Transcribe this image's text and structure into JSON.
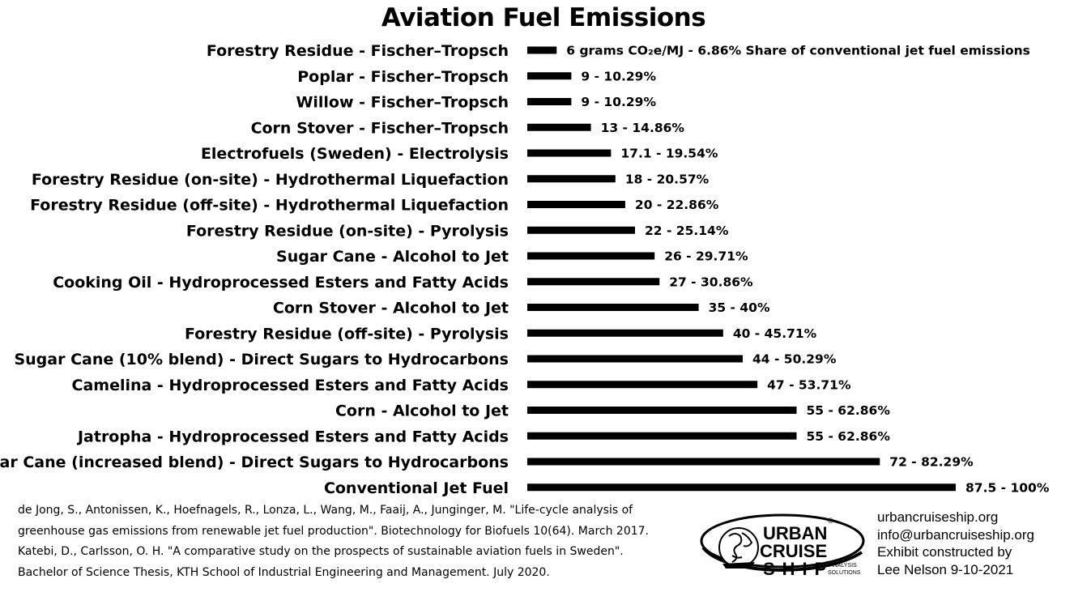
{
  "chart_data": {
    "type": "bar",
    "orientation": "horizontal",
    "title": "Aviation Fuel Emissions",
    "categories": [
      "Forestry Residue - Fischer–Tropsch",
      "Poplar - Fischer–Tropsch",
      "Willow - Fischer–Tropsch",
      "Corn Stover - Fischer–Tropsch",
      "Electrofuels (Sweden) - Electrolysis",
      "Forestry Residue (on-site) - Hydrothermal Liquefaction",
      "Forestry Residue (off-site) - Hydrothermal Liquefaction",
      "Forestry Residue (on-site) - Pyrolysis",
      "Sugar Cane - Alcohol to Jet",
      "Cooking Oil - Hydroprocessed Esters and Fatty Acids",
      "Corn Stover - Alcohol to Jet",
      "Forestry Residue (off-site) - Pyrolysis",
      "Sugar Cane (10% blend) - Direct Sugars to Hydrocarbons",
      "Camelina - Hydroprocessed Esters and Fatty Acids",
      "Corn - Alcohol to Jet",
      "Jatropha - Hydroprocessed Esters and Fatty Acids",
      "Sugar Cane (increased blend) - Direct Sugars to Hydrocarbons",
      "Conventional Jet Fuel"
    ],
    "values": [
      6,
      9,
      9,
      13,
      17.1,
      18,
      20,
      22,
      26,
      27,
      35,
      40,
      44,
      47,
      55,
      55,
      72,
      87.5
    ],
    "data_labels": [
      "6 grams CO₂e/MJ - 6.86% Share of conventional jet fuel emissions",
      "9 - 10.29%",
      "9 - 10.29%",
      "13 - 14.86%",
      "17.1 - 19.54%",
      "18 - 20.57%",
      "20 - 22.86%",
      "22 - 25.14%",
      "26 - 29.71%",
      "27 - 30.86%",
      "35 - 40%",
      "40 - 45.71%",
      "44 - 50.29%",
      "47 - 53.71%",
      "55 - 62.86%",
      "55 - 62.86%",
      "72 - 82.29%",
      "87.5 - 100%"
    ],
    "xlim": [
      0,
      87.5
    ],
    "grid": false,
    "bar_color": "#000000"
  },
  "references": [
    "de Jong, S., Antonissen, K., Hoefnagels, R., Lonza, L., Wang, M., Faaij, A., Junginger, M. \"Life-cycle analysis of",
    "greenhouse gas emissions from renewable jet fuel production\". Biotechnology for Biofuels 10(64). March 2017.",
    "Katebi, D., Carlsson, O. H. \"A comparative study on the prospects of sustainable aviation fuels in Sweden\".",
    "Bachelor of Science Thesis, KTH School of Industrial Engineering and Management. July 2020."
  ],
  "logo": {
    "line1": "URBAN",
    "line2": "CRUISE",
    "line3": "SHIP",
    "tag1": "ANALYSIS",
    "tag2": "SOLUTIONS",
    "reg": "®"
  },
  "contact": {
    "website": "urbancruiseship.org",
    "email": "info@urbancruiseship.org",
    "credit_line1": "Exhibit constructed by",
    "credit_line2": "Lee Nelson 9-10-2021"
  }
}
